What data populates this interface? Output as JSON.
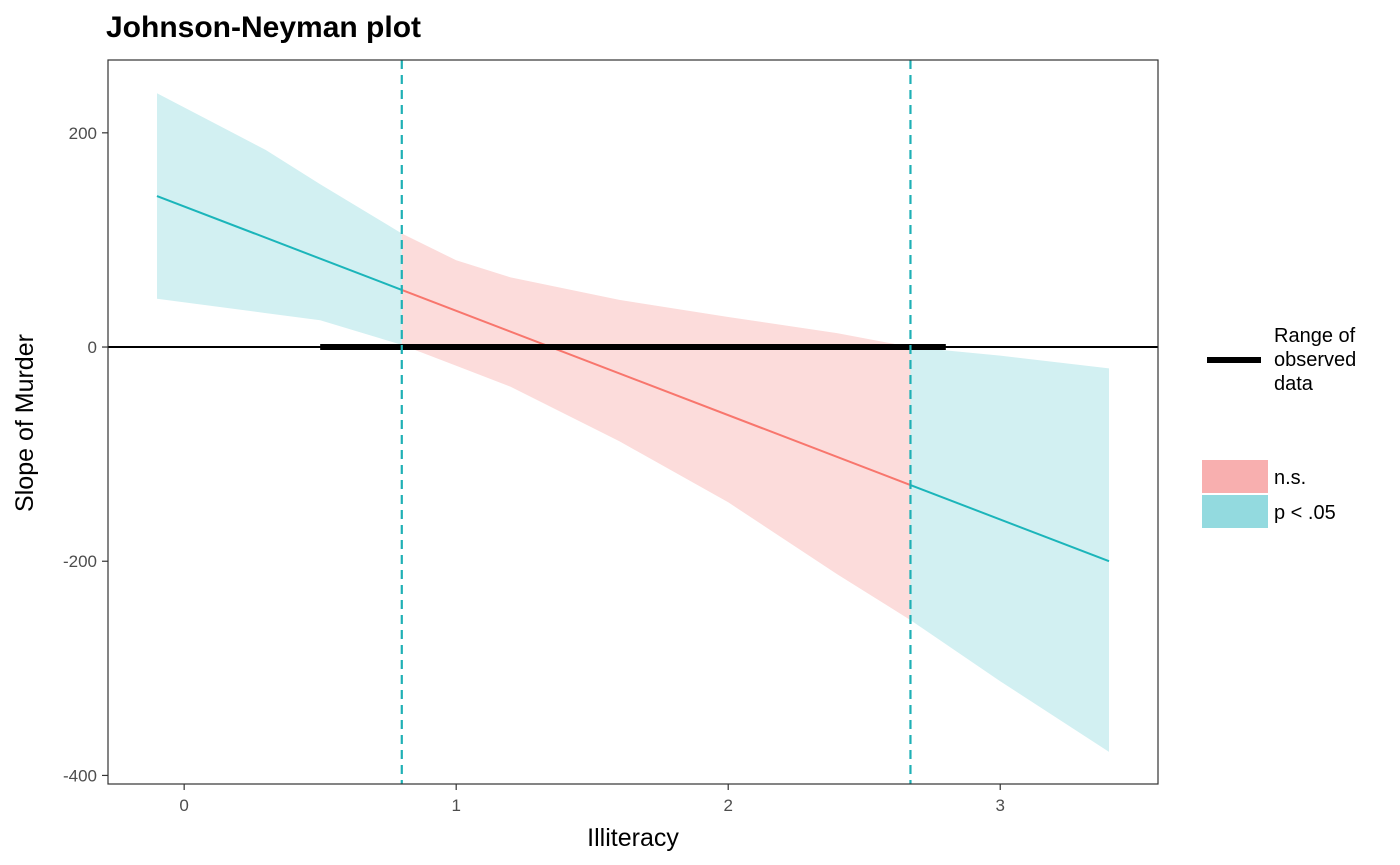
{
  "chart_data": {
    "type": "line",
    "title": "Johnson-Neyman plot",
    "xlabel": "Illiteracy",
    "ylabel": "Slope of Murder",
    "xlim": [
      -0.28,
      3.58
    ],
    "ylim": [
      -408,
      268
    ],
    "x_ticks": [
      0,
      1,
      2,
      3
    ],
    "y_ticks": [
      -400,
      -200,
      0,
      200
    ],
    "grid": false,
    "x_range": [
      -0.1,
      3.4
    ],
    "slope_line": {
      "x": [
        -0.1,
        3.4
      ],
      "y": [
        141,
        -200
      ]
    },
    "band_lower": {
      "x": [
        -0.1,
        0.5,
        0.8,
        1.2,
        1.6,
        2.0,
        2.4,
        2.67,
        3.0,
        3.4
      ],
      "y": [
        45,
        25,
        2,
        -37,
        -88,
        -145,
        -212,
        -255,
        -312,
        -378
      ]
    },
    "band_upper": {
      "x": [
        -0.1,
        0.3,
        0.5,
        0.8,
        1.0,
        1.2,
        1.6,
        2.0,
        2.4,
        2.67,
        3.0,
        3.4
      ],
      "y": [
        237,
        184,
        152,
        106,
        81,
        65,
        44,
        28,
        13,
        0,
        -8,
        -20
      ]
    },
    "jn_bounds": [
      0.8,
      2.67
    ],
    "observed_range": [
      0.5,
      2.8
    ],
    "legend": {
      "position": "right",
      "line_label": "Range of observed data",
      "line_label_lines": [
        "Range of",
        "observed",
        "data"
      ],
      "regions": [
        {
          "name": "n.s.",
          "key_color": "#F8AFAF"
        },
        {
          "name": "p < .05",
          "key_color": "#93DADF"
        }
      ]
    },
    "colors": {
      "ns_line": "#F8766D",
      "ns_fill": "#FCDCDB",
      "sig_line": "#1BB5BA",
      "sig_fill": "#D2F0F2",
      "bound_line": "#1FB0B5",
      "zero_line": "#000000"
    }
  }
}
